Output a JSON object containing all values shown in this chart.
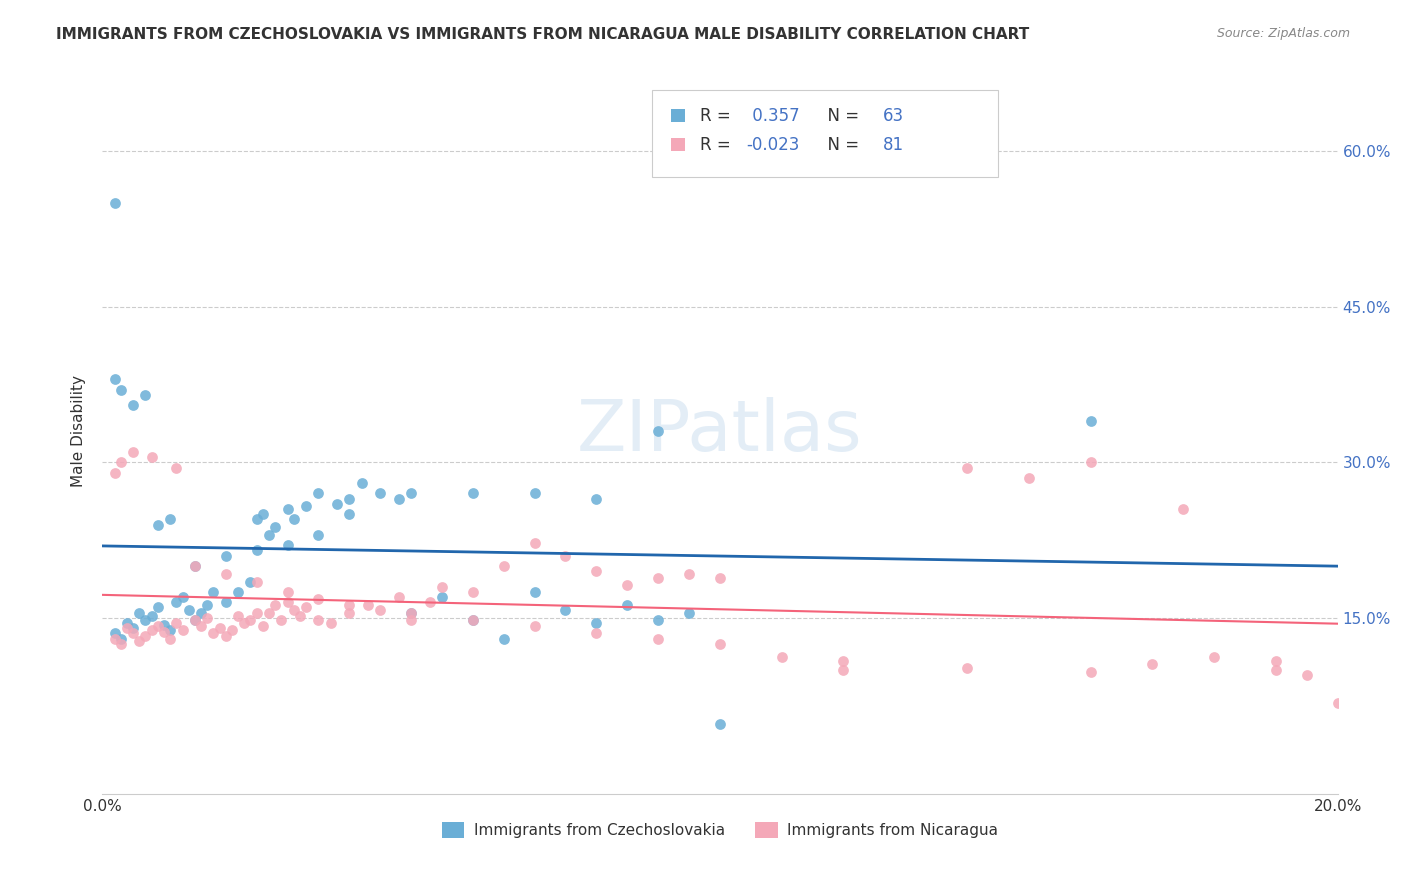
{
  "title": "IMMIGRANTS FROM CZECHOSLOVAKIA VS IMMIGRANTS FROM NICARAGUA MALE DISABILITY CORRELATION CHART",
  "source": "Source: ZipAtlas.com",
  "ylabel": "Male Disability",
  "xlim": [
    0.0,
    0.2
  ],
  "ylim": [
    -0.02,
    0.68
  ],
  "y_ticks_right": [
    0.15,
    0.3,
    0.45,
    0.6
  ],
  "y_tick_labels_right": [
    "15.0%",
    "30.0%",
    "45.0%",
    "60.0%"
  ],
  "R_blue": 0.357,
  "N_blue": 63,
  "R_pink": -0.023,
  "N_pink": 81,
  "blue_color": "#6aaed6",
  "pink_color": "#f4a8b8",
  "blue_line_color": "#2166ac",
  "pink_line_color": "#f4637a",
  "legend_label_blue": "Immigrants from Czechoslovakia",
  "legend_label_pink": "Immigrants from Nicaragua",
  "watermark": "ZIPatlas",
  "blue_scatter_x": [
    0.002,
    0.003,
    0.004,
    0.005,
    0.006,
    0.007,
    0.008,
    0.009,
    0.01,
    0.011,
    0.012,
    0.013,
    0.014,
    0.015,
    0.016,
    0.017,
    0.018,
    0.02,
    0.022,
    0.024,
    0.025,
    0.026,
    0.027,
    0.028,
    0.03,
    0.031,
    0.033,
    0.035,
    0.038,
    0.04,
    0.042,
    0.045,
    0.048,
    0.05,
    0.055,
    0.06,
    0.065,
    0.07,
    0.075,
    0.08,
    0.085,
    0.09,
    0.095,
    0.1,
    0.002,
    0.003,
    0.005,
    0.007,
    0.009,
    0.011,
    0.015,
    0.02,
    0.025,
    0.03,
    0.035,
    0.04,
    0.05,
    0.06,
    0.07,
    0.08,
    0.09,
    0.16,
    0.002
  ],
  "blue_scatter_y": [
    0.135,
    0.13,
    0.145,
    0.14,
    0.155,
    0.148,
    0.152,
    0.16,
    0.143,
    0.138,
    0.165,
    0.17,
    0.158,
    0.148,
    0.155,
    0.162,
    0.175,
    0.165,
    0.175,
    0.185,
    0.245,
    0.25,
    0.23,
    0.238,
    0.255,
    0.245,
    0.258,
    0.27,
    0.26,
    0.265,
    0.28,
    0.27,
    0.265,
    0.155,
    0.17,
    0.148,
    0.13,
    0.175,
    0.158,
    0.145,
    0.162,
    0.148,
    0.155,
    0.048,
    0.38,
    0.37,
    0.355,
    0.365,
    0.24,
    0.245,
    0.2,
    0.21,
    0.215,
    0.22,
    0.23,
    0.25,
    0.27,
    0.27,
    0.27,
    0.265,
    0.33,
    0.34,
    0.55
  ],
  "pink_scatter_x": [
    0.002,
    0.003,
    0.004,
    0.005,
    0.006,
    0.007,
    0.008,
    0.009,
    0.01,
    0.011,
    0.012,
    0.013,
    0.015,
    0.016,
    0.017,
    0.018,
    0.019,
    0.02,
    0.021,
    0.022,
    0.023,
    0.024,
    0.025,
    0.026,
    0.027,
    0.028,
    0.029,
    0.03,
    0.031,
    0.032,
    0.033,
    0.035,
    0.037,
    0.04,
    0.043,
    0.045,
    0.048,
    0.05,
    0.053,
    0.055,
    0.06,
    0.065,
    0.07,
    0.075,
    0.08,
    0.085,
    0.09,
    0.095,
    0.1,
    0.11,
    0.12,
    0.14,
    0.16,
    0.17,
    0.18,
    0.19,
    0.002,
    0.003,
    0.005,
    0.008,
    0.012,
    0.015,
    0.02,
    0.025,
    0.03,
    0.035,
    0.04,
    0.05,
    0.06,
    0.07,
    0.08,
    0.09,
    0.1,
    0.12,
    0.14,
    0.15,
    0.16,
    0.175,
    0.19,
    0.195,
    0.2
  ],
  "pink_scatter_y": [
    0.13,
    0.125,
    0.14,
    0.135,
    0.128,
    0.132,
    0.138,
    0.142,
    0.136,
    0.13,
    0.145,
    0.138,
    0.148,
    0.142,
    0.15,
    0.135,
    0.14,
    0.132,
    0.138,
    0.152,
    0.145,
    0.148,
    0.155,
    0.142,
    0.155,
    0.162,
    0.148,
    0.165,
    0.158,
    0.152,
    0.16,
    0.148,
    0.145,
    0.155,
    0.162,
    0.158,
    0.17,
    0.148,
    0.165,
    0.18,
    0.175,
    0.2,
    0.222,
    0.21,
    0.195,
    0.182,
    0.188,
    0.192,
    0.188,
    0.112,
    0.108,
    0.102,
    0.098,
    0.105,
    0.112,
    0.1,
    0.29,
    0.3,
    0.31,
    0.305,
    0.295,
    0.2,
    0.192,
    0.185,
    0.175,
    0.168,
    0.162,
    0.155,
    0.148,
    0.142,
    0.135,
    0.13,
    0.125,
    0.1,
    0.295,
    0.285,
    0.3,
    0.255,
    0.108,
    0.095,
    0.068
  ]
}
